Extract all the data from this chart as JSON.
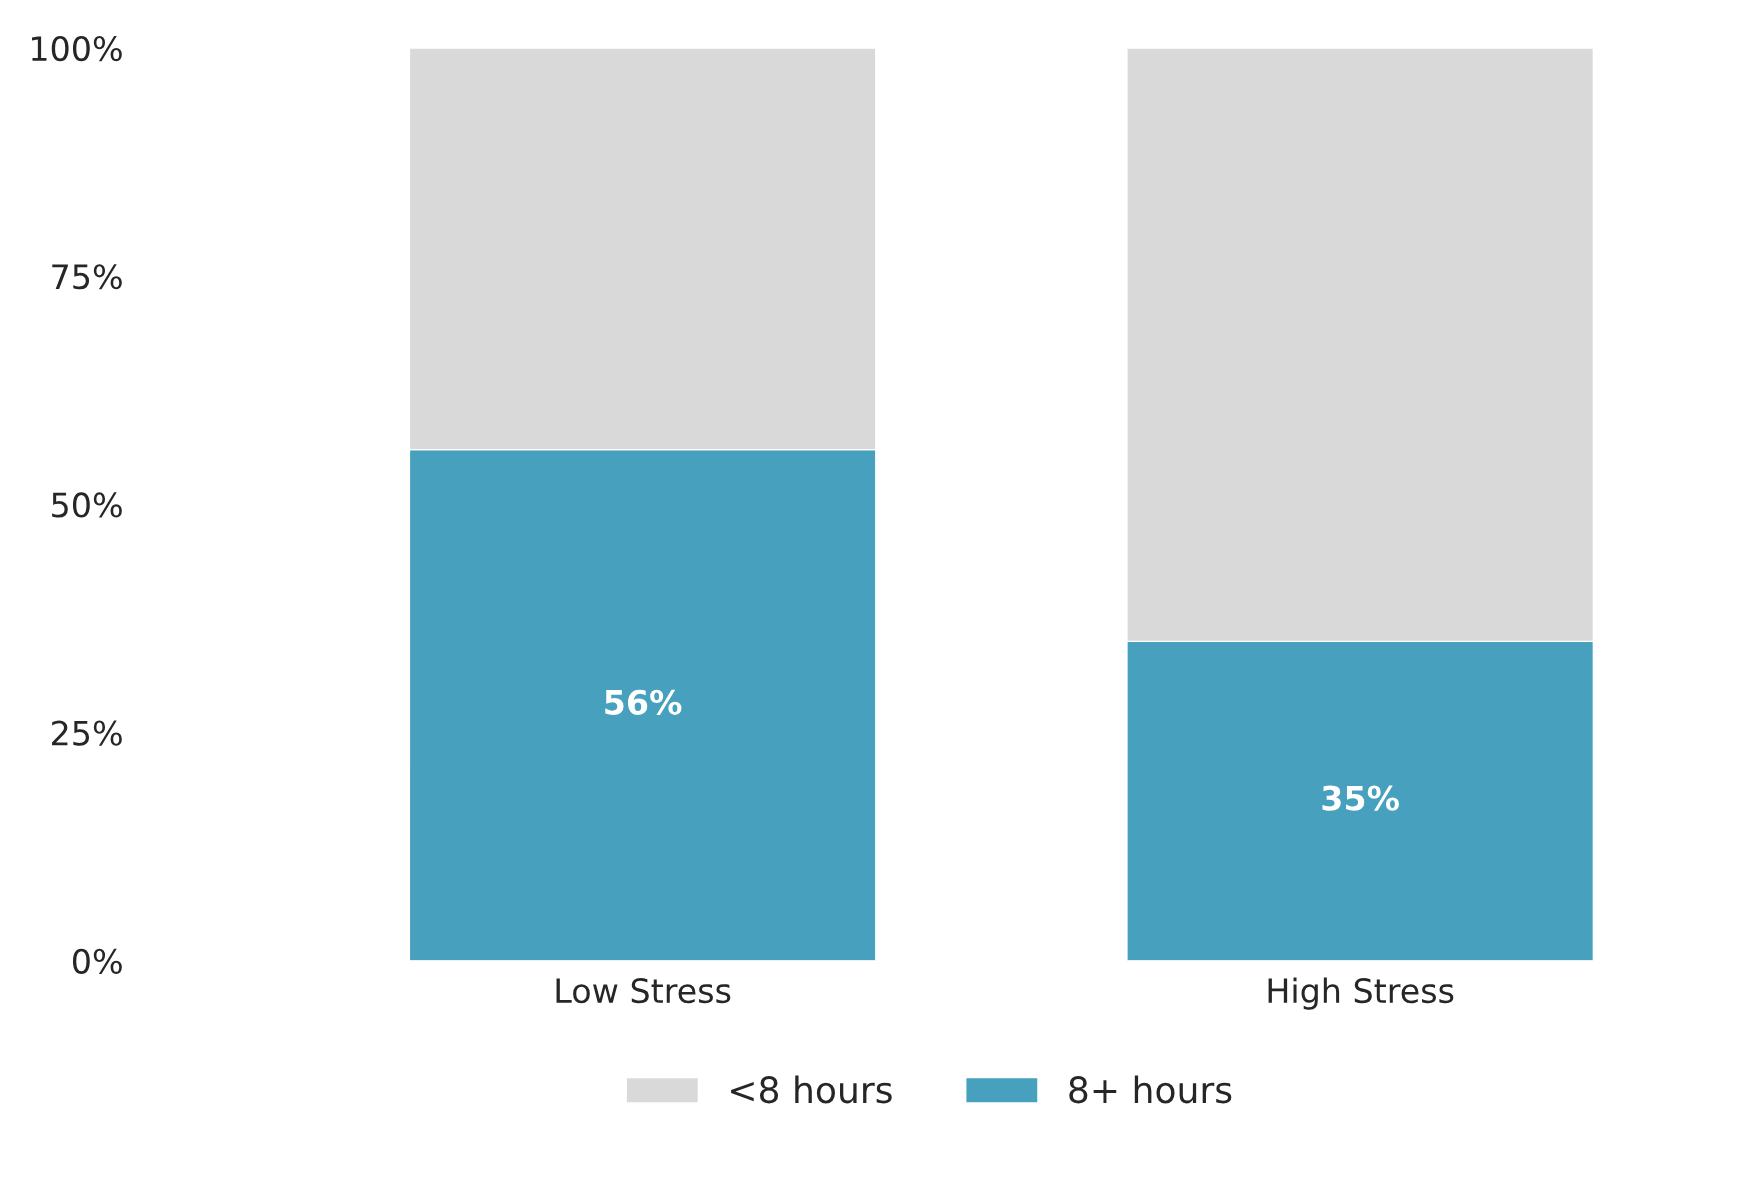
{
  "chart_data": {
    "type": "bar",
    "stacked": true,
    "categories": [
      "Low Stress",
      "High Stress"
    ],
    "series": [
      {
        "name": "8+ hours",
        "color": "#46a0be",
        "values": [
          56,
          35
        ],
        "value_labels": [
          "56%",
          "35%"
        ]
      },
      {
        "name": "<8 hours",
        "color": "#d9d9d9",
        "values": [
          44,
          65
        ]
      }
    ],
    "ylim": [
      0,
      100
    ],
    "yticks": [
      {
        "value": 0,
        "label": "0%"
      },
      {
        "value": 25,
        "label": "25%"
      },
      {
        "value": 50,
        "label": "50%"
      },
      {
        "value": 75,
        "label": "75%"
      },
      {
        "value": 100,
        "label": "100%"
      }
    ],
    "grid": false,
    "legend": "bottom"
  }
}
